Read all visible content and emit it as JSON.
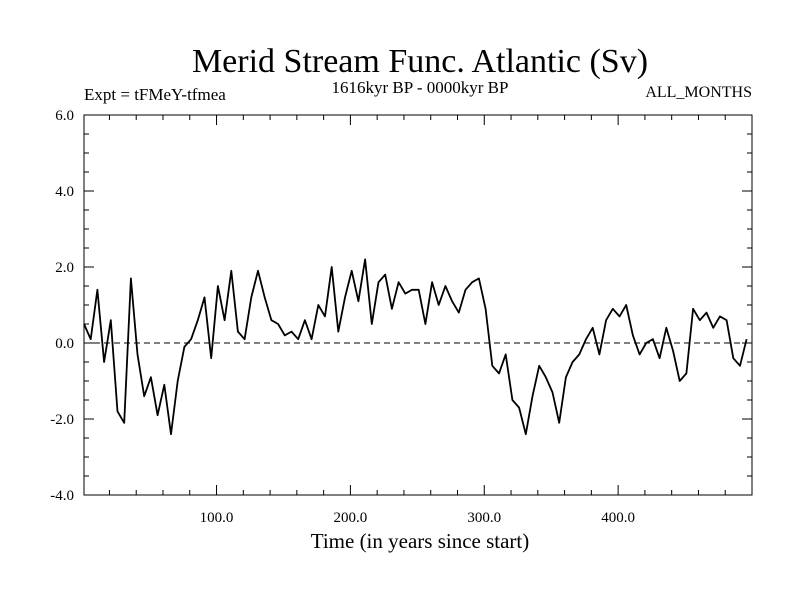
{
  "chart_data": {
    "type": "line",
    "title": "Merid Stream Func. Atlantic (Sv)",
    "subtitle": "1616kyr BP - 0000kyr BP",
    "annotation_left": "Expt = tFMeY-tfmea",
    "annotation_right": "ALL_MONTHS",
    "xlabel": "Time (in years since start)",
    "ylabel": "",
    "xlim": [
      1,
      500
    ],
    "ylim": [
      -4.0,
      6.0
    ],
    "x_ticks": [
      100,
      200,
      300,
      400
    ],
    "x_tick_labels": [
      "100.0",
      "200.0",
      "300.0",
      "400.0"
    ],
    "y_ticks": [
      -4,
      -2,
      0,
      2,
      4,
      6
    ],
    "y_tick_labels": [
      "-4.0",
      "-2.0",
      "0.0",
      "2.0",
      "4.0",
      "6.0"
    ],
    "reference_line": 0,
    "series": [
      {
        "name": "Merid Stream Func. Atlantic",
        "x_start": 1,
        "x_step": 5,
        "values": [
          0.5,
          0.1,
          1.4,
          -0.5,
          0.6,
          -1.8,
          -2.1,
          1.7,
          -0.3,
          -1.4,
          -0.9,
          -1.9,
          -1.1,
          -2.4,
          -1.0,
          -0.1,
          0.1,
          0.6,
          1.2,
          -0.4,
          1.5,
          0.6,
          1.9,
          0.3,
          0.1,
          1.2,
          1.9,
          1.2,
          0.6,
          0.5,
          0.2,
          0.3,
          0.1,
          0.6,
          0.1,
          1.0,
          0.7,
          2.0,
          0.3,
          1.2,
          1.9,
          1.1,
          2.2,
          0.5,
          1.6,
          1.8,
          0.9,
          1.6,
          1.3,
          1.4,
          1.4,
          0.5,
          1.6,
          1.0,
          1.5,
          1.1,
          0.8,
          1.4,
          1.6,
          1.7,
          0.9,
          -0.6,
          -0.8,
          -0.3,
          -1.5,
          -1.7,
          -2.4,
          -1.4,
          -0.6,
          -0.9,
          -1.3,
          -2.1,
          -0.9,
          -0.5,
          -0.3,
          0.1,
          0.4,
          -0.3,
          0.6,
          0.9,
          0.7,
          1.0,
          0.2,
          -0.3,
          0.0,
          0.1,
          -0.4,
          0.4,
          -0.2,
          -1.0,
          -0.8,
          0.9,
          0.6,
          0.8,
          0.4,
          0.7,
          0.6,
          -0.4,
          -0.6,
          0.1
        ]
      }
    ]
  }
}
